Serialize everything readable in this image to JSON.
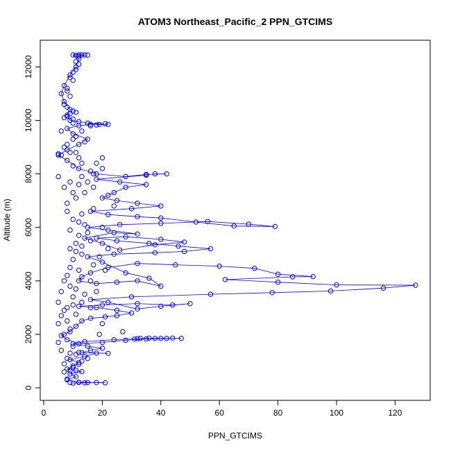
{
  "chart_data": {
    "type": "scatter",
    "title": "ATOM3 Northeast_Pacific_2 PPN_GTCIMS",
    "xlabel": "PPN_GTCIMS",
    "ylabel": "Altitude (m)",
    "xlim": [
      0,
      130
    ],
    "ylim": [
      0,
      12500
    ],
    "x_ticks": [
      "0",
      "20",
      "40",
      "60",
      "80",
      "100",
      "120"
    ],
    "y_ticks": [
      "0",
      "2000",
      "4000",
      "6000",
      "8000",
      "10000",
      "12000"
    ],
    "grid": false,
    "series": [
      {
        "style": "points joined by lines",
        "color": "#0000ff",
        "points": [
          [
            10,
            180
          ],
          [
            14,
            190
          ],
          [
            18,
            200
          ],
          [
            21,
            190
          ],
          [
            12,
            210
          ],
          [
            8,
            300
          ],
          [
            11,
            420
          ],
          [
            9,
            520
          ],
          [
            13,
            610
          ],
          [
            8,
            700
          ],
          [
            10,
            820
          ],
          [
            12,
            950
          ],
          [
            9,
            1050
          ],
          [
            14,
            1180
          ],
          [
            18,
            1300
          ],
          [
            22,
            1290
          ],
          [
            13,
            1320
          ],
          [
            16,
            1400
          ],
          [
            20,
            1480
          ],
          [
            15,
            1560
          ],
          [
            10,
            1650
          ],
          [
            14,
            1730
          ],
          [
            24,
            1800
          ],
          [
            32,
            1840
          ],
          [
            38,
            1850
          ],
          [
            42,
            1850
          ],
          [
            47,
            1850
          ],
          [
            35,
            1830
          ],
          [
            28,
            1780
          ],
          [
            20,
            1700
          ],
          [
            12,
            1650
          ],
          [
            8,
            1800
          ],
          [
            6,
            1950
          ],
          [
            9,
            2100
          ],
          [
            11,
            2300
          ],
          [
            13,
            2500
          ],
          [
            16,
            2600
          ],
          [
            21,
            2650
          ],
          [
            25,
            2700
          ],
          [
            30,
            2800
          ],
          [
            25,
            2900
          ],
          [
            18,
            3000
          ],
          [
            12,
            3050
          ],
          [
            20,
            3100
          ],
          [
            32,
            3150
          ],
          [
            44,
            3100
          ],
          [
            50,
            3150
          ],
          [
            40,
            3050
          ],
          [
            32,
            2950
          ],
          [
            22,
            3200
          ],
          [
            16,
            3300
          ],
          [
            30,
            3400
          ],
          [
            57,
            3500
          ],
          [
            78,
            3560
          ],
          [
            98,
            3620
          ],
          [
            116,
            3730
          ],
          [
            127,
            3840
          ],
          [
            100,
            3850
          ],
          [
            80,
            3950
          ],
          [
            62,
            4050
          ],
          [
            85,
            4150
          ],
          [
            92,
            4160
          ],
          [
            80,
            4250
          ],
          [
            72,
            4470
          ],
          [
            60,
            4550
          ],
          [
            45,
            4600
          ],
          [
            32,
            4650
          ],
          [
            22,
            4500
          ],
          [
            16,
            4300
          ],
          [
            13,
            4150
          ],
          [
            12,
            4000
          ],
          [
            18,
            3900
          ],
          [
            25,
            3950
          ],
          [
            32,
            4000
          ],
          [
            40,
            3800
          ],
          [
            36,
            4100
          ],
          [
            28,
            4300
          ],
          [
            20,
            4700
          ],
          [
            15,
            4900
          ],
          [
            24,
            5000
          ],
          [
            38,
            5050
          ],
          [
            48,
            5100
          ],
          [
            57,
            5200
          ],
          [
            46,
            5300
          ],
          [
            36,
            5400
          ],
          [
            25,
            5500
          ],
          [
            18,
            5600
          ],
          [
            28,
            5650
          ],
          [
            40,
            5550
          ],
          [
            48,
            5450
          ],
          [
            38,
            5350
          ],
          [
            26,
            5150
          ],
          [
            20,
            5400
          ],
          [
            14,
            5600
          ],
          [
            24,
            5800
          ],
          [
            32,
            5750
          ],
          [
            22,
            5900
          ],
          [
            15,
            6000
          ],
          [
            26,
            6100
          ],
          [
            40,
            6150
          ],
          [
            56,
            6220
          ],
          [
            70,
            6120
          ],
          [
            79,
            6030
          ],
          [
            65,
            6050
          ],
          [
            52,
            6200
          ],
          [
            40,
            6350
          ],
          [
            32,
            6400
          ],
          [
            22,
            6480
          ],
          [
            16,
            6600
          ],
          [
            30,
            6700
          ],
          [
            40,
            6800
          ],
          [
            32,
            6900
          ],
          [
            25,
            7000
          ],
          [
            20,
            7100
          ],
          [
            24,
            7300
          ],
          [
            28,
            7500
          ],
          [
            35,
            7600
          ],
          [
            26,
            7700
          ],
          [
            18,
            7800
          ],
          [
            35,
            7950
          ],
          [
            38,
            8000
          ],
          [
            42,
            8000
          ],
          [
            35,
            7980
          ],
          [
            28,
            7900
          ],
          [
            18,
            8000
          ],
          [
            12,
            8200
          ],
          [
            8,
            8500
          ],
          [
            5,
            8700
          ],
          [
            8,
            8900
          ],
          [
            12,
            9100
          ],
          [
            15,
            9300
          ],
          [
            10,
            9500
          ],
          [
            8,
            9700
          ],
          [
            12,
            9800
          ],
          [
            16,
            9850
          ],
          [
            22,
            9850
          ],
          [
            15,
            9900
          ],
          [
            9,
            10000
          ],
          [
            8,
            10200
          ],
          [
            9,
            10400
          ],
          [
            7,
            10700
          ],
          [
            6,
            11000
          ],
          [
            7,
            11300
          ],
          [
            9,
            11700
          ],
          [
            11,
            12000
          ],
          [
            12,
            12300
          ],
          [
            10,
            12450
          ],
          [
            14,
            12450
          ],
          [
            12,
            12400
          ]
        ]
      }
    ],
    "extra_points": [
      [
        7,
        600
      ],
      [
        9,
        640
      ],
      [
        11,
        660
      ],
      [
        7,
        900
      ],
      [
        13,
        1000
      ],
      [
        8,
        1100
      ],
      [
        11,
        1250
      ],
      [
        6,
        1400
      ],
      [
        10,
        1550
      ],
      [
        5,
        1700
      ],
      [
        7,
        2000
      ],
      [
        9,
        2200
      ],
      [
        5,
        2400
      ],
      [
        8,
        2500
      ],
      [
        11,
        2750
      ],
      [
        7,
        2900
      ],
      [
        13,
        3200
      ],
      [
        10,
        3400
      ],
      [
        6,
        3600
      ],
      [
        9,
        3800
      ],
      [
        14,
        3500
      ],
      [
        11,
        3700
      ],
      [
        16,
        4000
      ],
      [
        8,
        4200
      ],
      [
        12,
        4400
      ],
      [
        17,
        4600
      ],
      [
        10,
        4800
      ],
      [
        13,
        5000
      ],
      [
        9,
        5200
      ],
      [
        11,
        5400
      ],
      [
        16,
        5500
      ],
      [
        12,
        5700
      ],
      [
        9,
        5900
      ],
      [
        14,
        6100
      ],
      [
        10,
        6300
      ],
      [
        13,
        6500
      ],
      [
        17,
        6700
      ],
      [
        8,
        6900
      ],
      [
        11,
        7100
      ],
      [
        14,
        7300
      ],
      [
        7,
        7500
      ],
      [
        9,
        7700
      ],
      [
        13,
        7900
      ],
      [
        16,
        8100
      ],
      [
        10,
        8300
      ],
      [
        18,
        8400
      ],
      [
        12,
        8600
      ],
      [
        9,
        8800
      ],
      [
        7,
        9000
      ],
      [
        14,
        9200
      ],
      [
        11,
        9400
      ],
      [
        6,
        9600
      ],
      [
        10,
        9900
      ],
      [
        7,
        10100
      ],
      [
        11,
        10300
      ],
      [
        8,
        10500
      ],
      [
        9,
        10900
      ],
      [
        8,
        11200
      ],
      [
        10,
        11500
      ],
      [
        11,
        11900
      ],
      [
        6,
        8700
      ],
      [
        5,
        8750
      ],
      [
        5,
        7900
      ],
      [
        20,
        8600
      ],
      [
        20,
        8200
      ],
      [
        17,
        7500
      ],
      [
        22,
        7200
      ],
      [
        24,
        6800
      ],
      [
        20,
        6000
      ],
      [
        22,
        5200
      ],
      [
        19,
        4900
      ],
      [
        21,
        4400
      ],
      [
        18,
        3600
      ],
      [
        16,
        3000
      ],
      [
        20,
        2400
      ],
      [
        19,
        2000
      ],
      [
        27,
        2100
      ],
      [
        33,
        1850
      ],
      [
        36,
        1860
      ],
      [
        40,
        1850
      ],
      [
        44,
        1860
      ],
      [
        31,
        1820
      ],
      [
        12,
        1320
      ],
      [
        9,
        1300
      ],
      [
        12,
        200
      ],
      [
        15,
        200
      ],
      [
        9,
        200
      ],
      [
        8,
        330
      ],
      [
        10,
        760
      ],
      [
        12,
        880
      ],
      [
        15,
        1100
      ],
      [
        6,
        2700
      ],
      [
        8,
        3000
      ],
      [
        10,
        3100
      ],
      [
        5,
        3200
      ],
      [
        7,
        4000
      ],
      [
        9,
        4500
      ],
      [
        11,
        5100
      ],
      [
        13,
        5300
      ],
      [
        15,
        5800
      ],
      [
        12,
        6200
      ],
      [
        8,
        6600
      ],
      [
        10,
        7300
      ],
      [
        12,
        7600
      ],
      [
        15,
        7700
      ],
      [
        17,
        8000
      ],
      [
        13,
        8400
      ],
      [
        11,
        8800
      ],
      [
        8,
        9100
      ],
      [
        10,
        9300
      ],
      [
        13,
        9600
      ],
      [
        16,
        9800
      ],
      [
        19,
        9850
      ],
      [
        21,
        9870
      ],
      [
        18,
        9830
      ],
      [
        12,
        9950
      ],
      [
        10,
        10050
      ],
      [
        8,
        10150
      ],
      [
        9,
        10250
      ],
      [
        10,
        10350
      ],
      [
        7,
        10600
      ],
      [
        8,
        11100
      ],
      [
        9,
        11600
      ],
      [
        10,
        11800
      ],
      [
        12,
        12100
      ],
      [
        11,
        12200
      ],
      [
        13,
        12450
      ],
      [
        15,
        12440
      ],
      [
        12,
        12450
      ],
      [
        11,
        12430
      ]
    ]
  }
}
